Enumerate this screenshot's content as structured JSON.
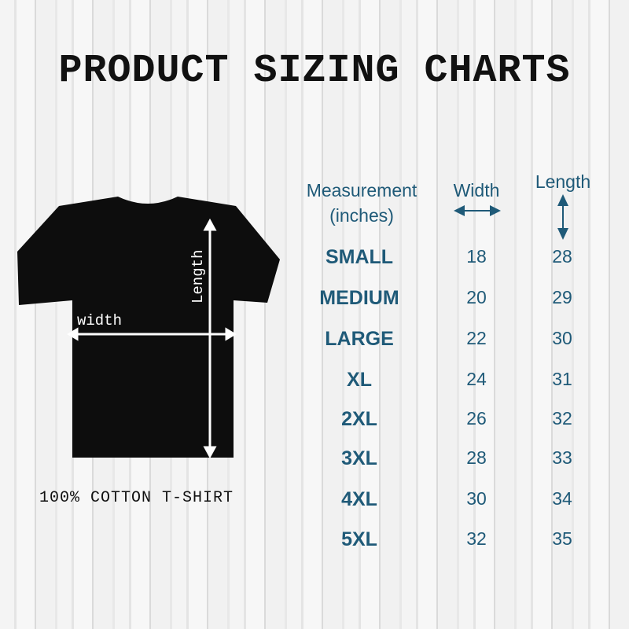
{
  "title": "PRODUCT SIZING CHARTS",
  "caption": "100% COTTON T-SHIRT",
  "shirt_labels": {
    "width": "width",
    "length": "Length"
  },
  "table": {
    "headers": {
      "measurement": "Measurement",
      "unit": "(inches)",
      "width": "Width",
      "length": "Length"
    },
    "rows": [
      {
        "size": "SMALL",
        "width": "18",
        "length": "28"
      },
      {
        "size": "MEDIUM",
        "width": "20",
        "length": "29"
      },
      {
        "size": "LARGE",
        "width": "22",
        "length": "30"
      },
      {
        "size": "XL",
        "width": "24",
        "length": "31"
      },
      {
        "size": "2XL",
        "width": "26",
        "length": "32"
      },
      {
        "size": "3XL",
        "width": "28",
        "length": "33"
      },
      {
        "size": "4XL",
        "width": "30",
        "length": "34"
      },
      {
        "size": "5XL",
        "width": "32",
        "length": "35"
      }
    ]
  },
  "colors": {
    "accent": "#1f5a78",
    "shirt": "#0d0d0d"
  }
}
